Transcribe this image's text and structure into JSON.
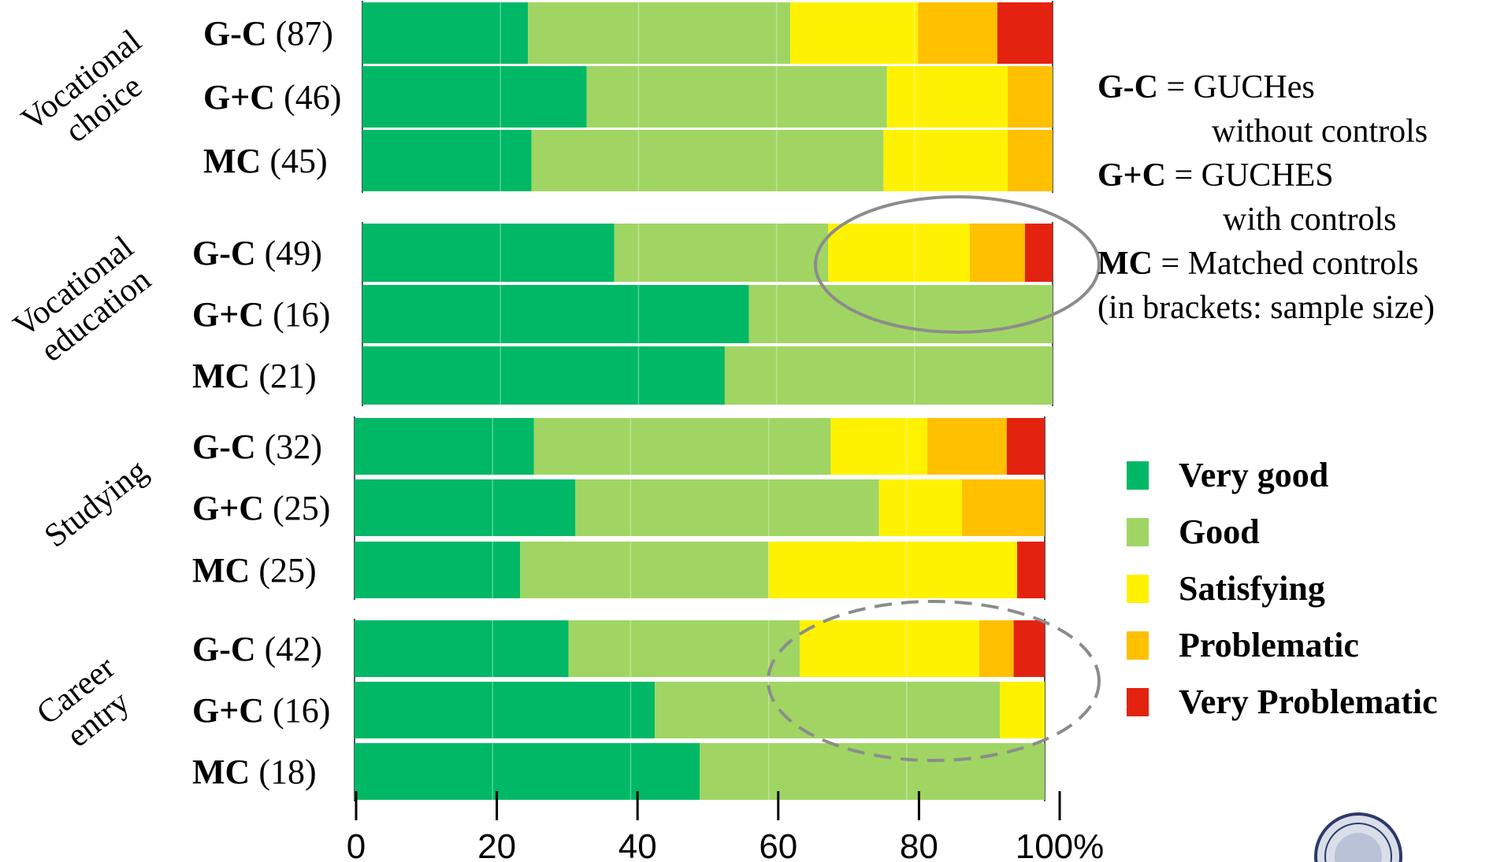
{
  "chart_data": {
    "type": "bar",
    "orientation": "horizontal",
    "stacked": true,
    "percent": true,
    "xlim": [
      0,
      100
    ],
    "xticks": [
      "0",
      "20",
      "40",
      "60",
      "80",
      "100%"
    ],
    "grid": true,
    "legend_position": "right",
    "categories_legend": [
      {
        "name": "Very good",
        "color": "#00b865"
      },
      {
        "name": "Good",
        "color": "#a0d563"
      },
      {
        "name": "Satisfying",
        "color": "#fff200"
      },
      {
        "name": "Problematic",
        "color": "#ffc000"
      },
      {
        "name": "Very Problematic",
        "color": "#e32310"
      }
    ],
    "groups": [
      {
        "label_lines": [
          "Vocational",
          "choice"
        ],
        "rows": [
          {
            "label": "G-C",
            "n": "(87)",
            "values": [
              24,
              38,
              18.5,
              11.5,
              8
            ]
          },
          {
            "label": "G+C",
            "n": "(46)",
            "values": [
              32.5,
              43.5,
              17.5,
              6.5,
              0
            ]
          },
          {
            "label": "MC",
            "n": "(45)",
            "values": [
              24.5,
              51,
              18,
              6.5,
              0
            ]
          }
        ]
      },
      {
        "label_lines": [
          "Vocational",
          "education"
        ],
        "rows": [
          {
            "label": "G-C",
            "n": "(49)",
            "values": [
              36.5,
              31,
              20.5,
              8,
              4
            ]
          },
          {
            "label": "G+C",
            "n": "(16)",
            "values": [
              56,
              44,
              0,
              0,
              0
            ]
          },
          {
            "label": "MC",
            "n": "(21)",
            "values": [
              52.5,
              47.5,
              0,
              0,
              0
            ]
          }
        ]
      },
      {
        "label_lines": [
          "Studying"
        ],
        "rows": [
          {
            "label": "G-C",
            "n": "(32)",
            "values": [
              26,
              43,
              14,
              11.5,
              5.5
            ]
          },
          {
            "label": "G+C",
            "n": "(25)",
            "values": [
              32,
              44,
              12,
              12,
              0
            ]
          },
          {
            "label": "MC",
            "n": "(25)",
            "values": [
              24,
              36,
              36,
              0,
              4
            ]
          }
        ]
      },
      {
        "label_lines": [
          "Career",
          "entry"
        ],
        "rows": [
          {
            "label": "G-C",
            "n": "(42)",
            "values": [
              31,
              33.5,
              26,
              5,
              4.5
            ]
          },
          {
            "label": "G+C",
            "n": "(16)",
            "values": [
              43.5,
              50,
              6.5,
              0,
              0
            ]
          },
          {
            "label": "MC",
            "n": "(18)",
            "values": [
              50,
              50,
              0,
              0,
              0
            ]
          }
        ]
      }
    ],
    "annotations": [
      {
        "group": 1,
        "row": 0,
        "style": "solid"
      },
      {
        "group": 3,
        "row": 0,
        "style": "dashed"
      }
    ]
  },
  "abbrev_legend": [
    {
      "bold": "G-C",
      "rest": " = GUCHes",
      "line2": "without controls"
    },
    {
      "bold": "G+C",
      "rest": " = GUCHES",
      "line2": "with controls"
    },
    {
      "bold": "MC",
      "rest": " = Matched controls",
      "line2": ""
    }
  ],
  "sample_note": "(in brackets: sample size)"
}
